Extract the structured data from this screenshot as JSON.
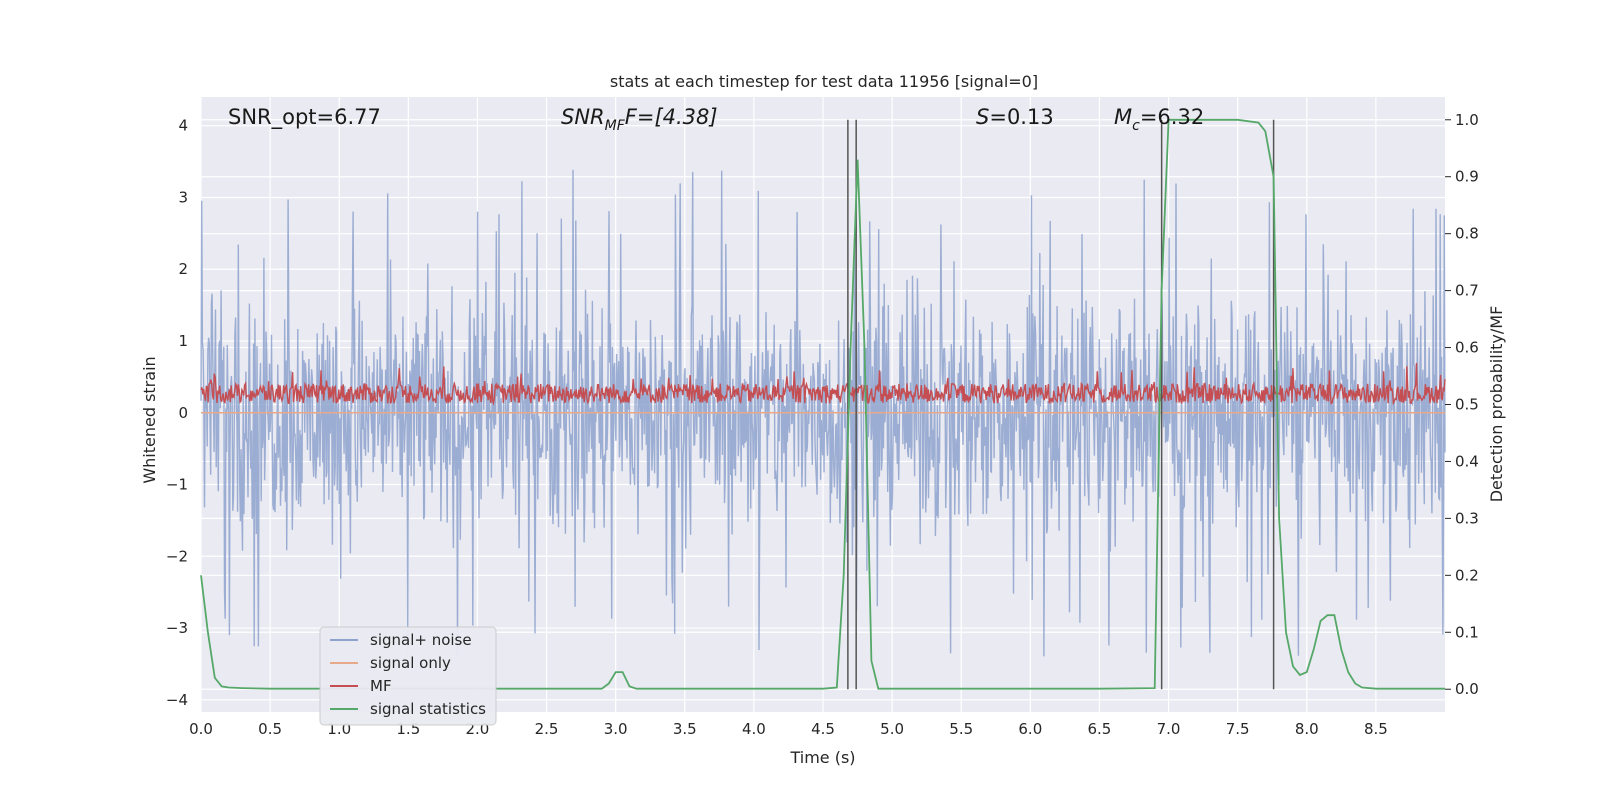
{
  "chart_data": {
    "type": "line",
    "title": "stats at each timestep for test data 11956 [signal=0]",
    "xlabel": "Time (s)",
    "ylabel_left": "Whitened strain",
    "ylabel_right": "Detection probability/MF",
    "xlim": [
      0.0,
      9.0
    ],
    "ylim_left": [
      -4.17,
      4.4
    ],
    "ylim_right": [
      -0.04,
      1.04
    ],
    "xticks": [
      "0.0",
      "0.5",
      "1.0",
      "1.5",
      "2.0",
      "2.5",
      "3.0",
      "3.5",
      "4.0",
      "4.5",
      "5.0",
      "5.5",
      "6.0",
      "6.5",
      "7.0",
      "7.5",
      "8.0",
      "8.5"
    ],
    "yticks_left": [
      "4",
      "3",
      "2",
      "1",
      "0",
      "−1",
      "−2",
      "−3",
      "−4"
    ],
    "yticks_right": [
      "1.0",
      "0.9",
      "0.8",
      "0.7",
      "0.6",
      "0.5",
      "0.4",
      "0.3",
      "0.2",
      "0.1",
      "0.0"
    ],
    "grid": true,
    "legend_position": "lower-left",
    "annotations": {
      "snr_opt": "SNR_opt=6.77",
      "snr_mf_sym": "SNR",
      "snr_mf_sub": "MF",
      "snr_mf_rest": "F=[4.38]",
      "s_sym": "S",
      "s_rest": "=0.13",
      "mc_sym": "M",
      "mc_sub": "c",
      "mc_rest": "=6.32"
    },
    "vertical_lines_x": [
      4.68,
      4.74,
      6.95,
      7.76
    ],
    "series": [
      {
        "name": "signal+ noise",
        "axis": "left",
        "color": "#8da2cd",
        "description_range": [
          -3.75,
          3.45
        ],
        "x_range": [
          0.0,
          9.0
        ]
      },
      {
        "name": "signal only",
        "axis": "left",
        "color": "#e8a88a",
        "x": [
          0.0,
          9.0
        ],
        "y": [
          0.0,
          0.0
        ]
      },
      {
        "name": "MF",
        "axis": "right",
        "color": "#c44e52",
        "value_range": [
          0.5,
          0.58
        ],
        "x_range": [
          0.0,
          9.0
        ]
      },
      {
        "name": "signal statistics",
        "axis": "right",
        "color": "#55a868",
        "x": [
          0.0,
          0.05,
          0.1,
          0.15,
          0.2,
          0.3,
          0.5,
          1.0,
          2.0,
          2.9,
          2.95,
          3.0,
          3.05,
          3.1,
          3.15,
          3.5,
          4.5,
          4.6,
          4.65,
          4.7,
          4.75,
          4.8,
          4.85,
          4.9,
          5.5,
          6.5,
          6.9,
          6.95,
          7.0,
          7.05,
          7.5,
          7.65,
          7.7,
          7.76,
          7.8,
          7.85,
          7.9,
          7.95,
          8.0,
          8.05,
          8.1,
          8.15,
          8.2,
          8.25,
          8.3,
          8.35,
          8.4,
          8.5,
          9.0
        ],
        "y": [
          0.2,
          0.1,
          0.02,
          0.005,
          0.003,
          0.002,
          0.001,
          0.001,
          0.001,
          0.001,
          0.01,
          0.03,
          0.03,
          0.005,
          0.001,
          0.001,
          0.001,
          0.003,
          0.2,
          0.6,
          0.93,
          0.6,
          0.05,
          0.001,
          0.001,
          0.001,
          0.002,
          0.7,
          1.0,
          1.0,
          1.0,
          0.995,
          0.98,
          0.9,
          0.3,
          0.1,
          0.04,
          0.025,
          0.03,
          0.07,
          0.12,
          0.13,
          0.13,
          0.07,
          0.03,
          0.01,
          0.003,
          0.001,
          0.001
        ]
      }
    ]
  }
}
